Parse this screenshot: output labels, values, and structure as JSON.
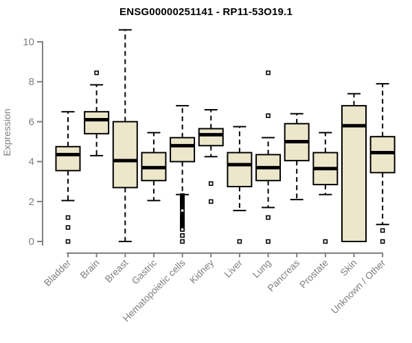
{
  "chart_data": {
    "type": "boxplot",
    "title": "ENSG00000251141 - RP11-53O19.1",
    "ylabel": "Expression",
    "xlabel": "",
    "yticks": [
      0,
      2,
      4,
      6,
      8,
      10
    ],
    "ylim": [
      0,
      10.6
    ],
    "grid": false,
    "legend": null,
    "categories": [
      "Bladder",
      "Brain",
      "Breast",
      "Gastric",
      "Hematopoietic cells",
      "Kidney",
      "Liver",
      "Lung",
      "Pancreas",
      "Prostate",
      "Skin",
      "Unknown / Other"
    ],
    "series": [
      {
        "label": "Bladder",
        "whislo": 2.05,
        "q1": 3.55,
        "med": 4.35,
        "q3": 4.75,
        "whishi": 6.5,
        "outliers": [
          1.2,
          0.7,
          0.0
        ]
      },
      {
        "label": "Brain",
        "whislo": 4.3,
        "q1": 5.4,
        "med": 6.1,
        "q3": 6.5,
        "whishi": 7.85,
        "outliers": [
          8.45
        ]
      },
      {
        "label": "Breast",
        "whislo": 0.0,
        "q1": 2.7,
        "med": 4.05,
        "q3": 6.0,
        "whishi": 10.6,
        "outliers": []
      },
      {
        "label": "Gastric",
        "whislo": 2.05,
        "q1": 3.05,
        "med": 3.7,
        "q3": 4.45,
        "whishi": 5.45,
        "outliers": []
      },
      {
        "label": "Hematopoietic cells",
        "whislo": 2.35,
        "q1": 4.0,
        "med": 4.8,
        "q3": 5.2,
        "whishi": 6.8,
        "outliers": [
          2.3,
          2.27,
          2.24,
          2.21,
          2.18,
          2.15,
          2.12,
          2.09,
          2.06,
          2.03,
          2.0,
          1.97,
          1.94,
          1.9,
          1.86,
          1.82,
          1.78,
          1.74,
          1.7,
          1.65,
          1.6,
          1.55,
          1.35,
          1.31,
          1.27,
          1.23,
          1.19,
          1.15,
          1.11,
          1.07,
          1.03,
          0.99,
          0.95,
          0.9,
          0.85,
          0.8,
          0.75,
          0.7,
          0.65,
          0.6,
          0.3,
          0.0
        ]
      },
      {
        "label": "Kidney",
        "whislo": 4.25,
        "q1": 4.8,
        "med": 5.35,
        "q3": 5.65,
        "whishi": 6.6,
        "outliers": [
          2.9,
          2.0
        ]
      },
      {
        "label": "Liver",
        "whislo": 1.55,
        "q1": 2.75,
        "med": 3.85,
        "q3": 4.45,
        "whishi": 5.75,
        "outliers": [
          0.0
        ]
      },
      {
        "label": "Lung",
        "whislo": 1.7,
        "q1": 3.05,
        "med": 3.7,
        "q3": 4.35,
        "whishi": 5.2,
        "outliers": [
          8.45,
          6.3,
          1.2,
          0.0
        ]
      },
      {
        "label": "Pancreas",
        "whislo": 2.1,
        "q1": 4.05,
        "med": 5.0,
        "q3": 5.9,
        "whishi": 6.4,
        "outliers": []
      },
      {
        "label": "Prostate",
        "whislo": 2.35,
        "q1": 2.85,
        "med": 3.65,
        "q3": 4.45,
        "whishi": 5.45,
        "outliers": [
          0.0
        ]
      },
      {
        "label": "Skin",
        "whislo": 0.0,
        "q1": 0.0,
        "med": 5.8,
        "q3": 6.8,
        "whishi": 7.4,
        "outliers": []
      },
      {
        "label": "Unknown / Other",
        "whislo": 0.85,
        "q1": 3.45,
        "med": 4.45,
        "q3": 5.25,
        "whishi": 7.9,
        "outliers": [
          0.55,
          0.0
        ]
      }
    ],
    "colors": {
      "box_fill": "#ece6ca",
      "box_stroke": "#000000",
      "median": "#000000",
      "whisker": "#000000",
      "outlier_stroke": "#000000",
      "axis": "#7f7f7f",
      "tick_label": "#7f7f7f",
      "title": "#000000",
      "background": "#ffffff"
    }
  }
}
